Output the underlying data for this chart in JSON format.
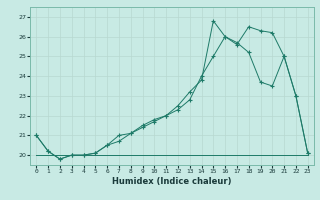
{
  "xlabel": "Humidex (Indice chaleur)",
  "xlim": [
    -0.5,
    23.5
  ],
  "ylim": [
    19.5,
    27.5
  ],
  "xticks": [
    0,
    1,
    2,
    3,
    4,
    5,
    6,
    7,
    8,
    9,
    10,
    11,
    12,
    13,
    14,
    15,
    16,
    17,
    18,
    19,
    20,
    21,
    22,
    23
  ],
  "yticks": [
    20,
    21,
    22,
    23,
    24,
    25,
    26,
    27
  ],
  "bg_color": "#c8eae4",
  "line_color": "#1e7a68",
  "grid_color_major": "#b8d8d0",
  "grid_color_minor": "#ddeee8",
  "series1_x": [
    0,
    1,
    2,
    3,
    4,
    5,
    6,
    7,
    8,
    9,
    10,
    11,
    12,
    13,
    14,
    15,
    16,
    17,
    18,
    19,
    20,
    21,
    22,
    23
  ],
  "series1_y": [
    21.0,
    20.2,
    19.8,
    20.0,
    20.0,
    20.1,
    20.5,
    21.0,
    21.1,
    21.5,
    21.8,
    22.0,
    22.5,
    23.2,
    23.8,
    26.8,
    26.0,
    25.7,
    25.2,
    23.7,
    23.5,
    25.0,
    23.0,
    20.1
  ],
  "series2_x": [
    0,
    1,
    2,
    3,
    4,
    5,
    6,
    7,
    8,
    9,
    10,
    11,
    12,
    13,
    14,
    15,
    16,
    17,
    18,
    19,
    20,
    21,
    22,
    23
  ],
  "series2_y": [
    21.0,
    20.2,
    19.8,
    20.0,
    20.0,
    20.1,
    20.5,
    20.7,
    21.1,
    21.4,
    21.7,
    22.0,
    22.3,
    22.8,
    24.0,
    25.0,
    26.0,
    25.6,
    26.5,
    26.3,
    26.2,
    25.0,
    23.0,
    20.1
  ],
  "series3_x": [
    0,
    1,
    2,
    3,
    4,
    5,
    6,
    7,
    8,
    9,
    10,
    11,
    12,
    13,
    14,
    15,
    16,
    17,
    18,
    19,
    20,
    21,
    22,
    23
  ],
  "series3_y": [
    20.0,
    20.0,
    20.0,
    20.0,
    20.0,
    20.0,
    20.0,
    20.0,
    20.0,
    20.0,
    20.0,
    20.0,
    20.0,
    20.0,
    20.0,
    20.0,
    20.0,
    20.0,
    20.0,
    20.0,
    20.0,
    20.0,
    20.0,
    20.0
  ]
}
